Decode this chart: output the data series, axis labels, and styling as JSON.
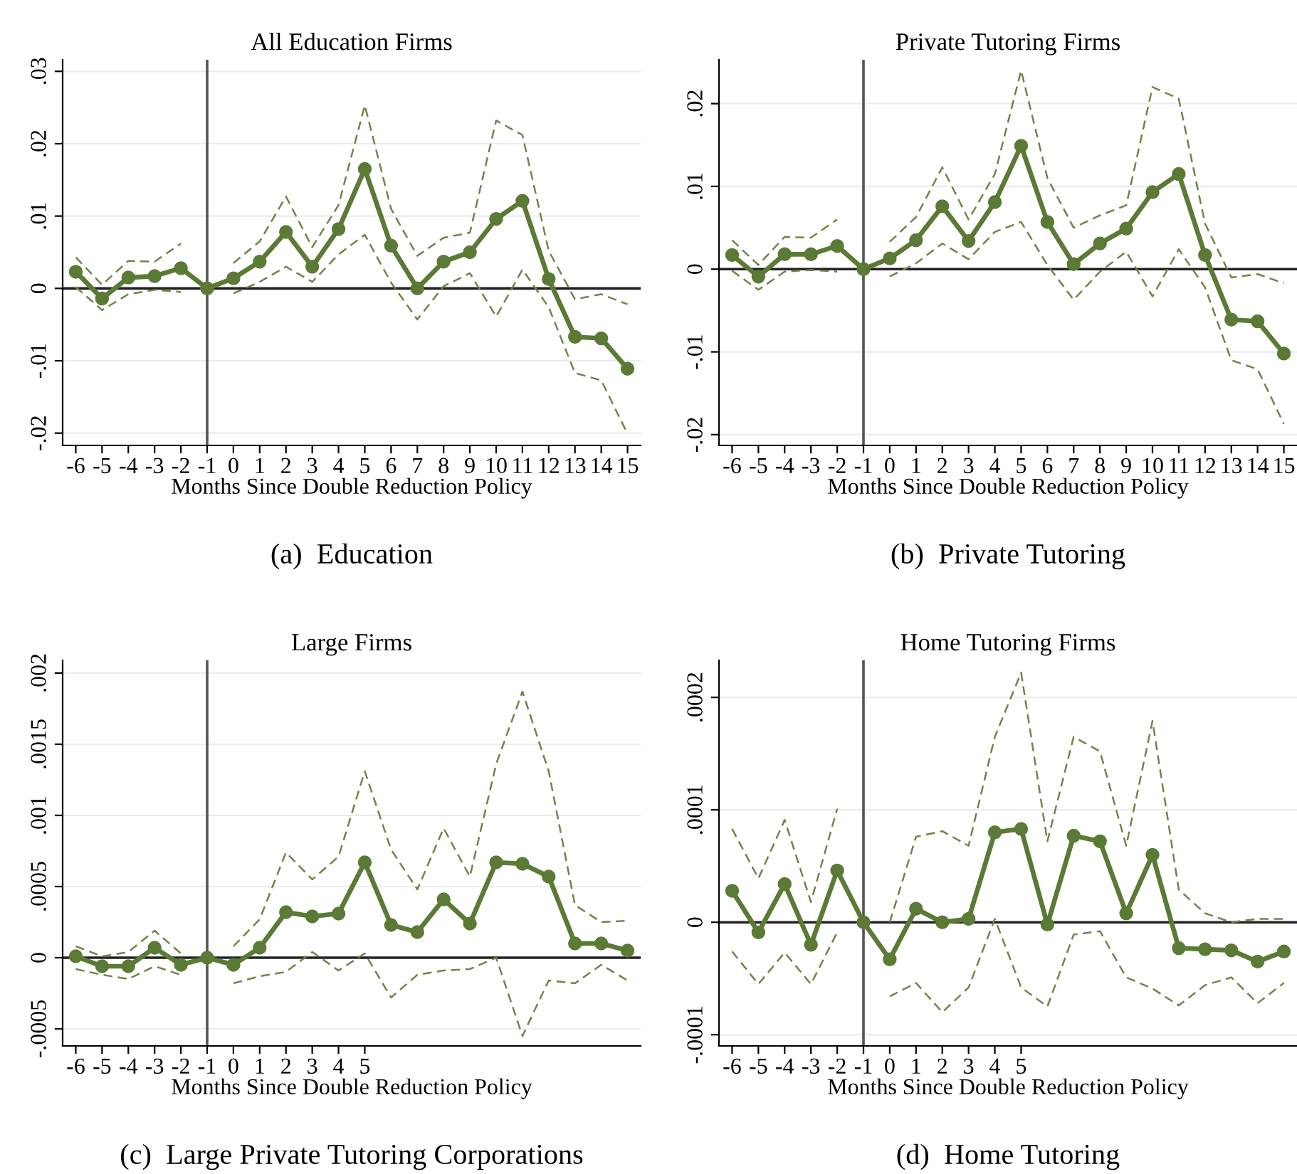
{
  "chart_data": [
    {
      "type": "line",
      "title": "All Education Firms",
      "xlabel": "Months Since Double Reduction Policy",
      "annotations": [
        "(a)  Education"
      ],
      "x": [
        -6,
        -5,
        -4,
        -3,
        -2,
        -1,
        0,
        1,
        2,
        3,
        4,
        5,
        6,
        7,
        8,
        9,
        10,
        11,
        12,
        13,
        14,
        15
      ],
      "xlim": [
        -6.5,
        15.5
      ],
      "xticks": [
        -6,
        -5,
        -4,
        -3,
        -2,
        -1,
        0,
        1,
        2,
        3,
        4,
        5,
        6,
        7,
        8,
        9,
        10,
        11,
        12,
        13,
        14,
        15
      ],
      "ylim": [
        -0.0217,
        0.0316
      ],
      "yticks": [
        {
          "value": -0.02,
          "label": "-.02"
        },
        {
          "value": -0.01,
          "label": "-.01"
        },
        0,
        {
          "value": 0.01,
          "label": ".01"
        },
        {
          "value": 0.02,
          "label": ".02"
        },
        {
          "value": 0.03,
          "label": ".03"
        }
      ],
      "grid": "y",
      "ref_lines": [
        {
          "axis": "x",
          "value": -1,
          "color": "#555555"
        },
        {
          "axis": "y",
          "value": 0,
          "color": "#222222"
        }
      ],
      "series": [
        {
          "color": "#5b7a35",
          "marker": "circle",
          "line_style": "solid",
          "values": [
            0.0023,
            -0.0014,
            0.0015,
            0.0017,
            0.0028,
            0,
            0.0014,
            0.0037,
            0.0078,
            0.003,
            0.0082,
            0.0165,
            0.0059,
            0,
            0.0037,
            0.005,
            0.0096,
            0.0121,
            0.0013,
            -0.0067,
            -0.0069,
            -0.0111
          ]
        },
        {
          "color": "#6f8548",
          "marker": "none",
          "line_style": "dashed",
          "values": [
            0.0043,
            0.0005,
            0.0038,
            0.0037,
            0.0062,
            null,
            0.0035,
            0.0065,
            0.0127,
            0.0057,
            0.0115,
            0.0253,
            0.011,
            0.0045,
            0.007,
            0.0077,
            0.0232,
            0.0212,
            0.0052,
            -0.0015,
            -0.0008,
            -0.0022
          ]
        },
        {
          "color": "#6f8548",
          "marker": "none",
          "line_style": "dashed",
          "values": [
            0.0002,
            -0.003,
            -0.0008,
            -0.0002,
            -0.0005,
            null,
            -0.0007,
            0.0009,
            0.003,
            0.0009,
            0.0047,
            0.0074,
            0.0008,
            -0.0043,
            0.0003,
            0.0021,
            -0.0039,
            0.0026,
            -0.0026,
            -0.0117,
            -0.0127,
            -0.0201
          ]
        }
      ]
    },
    {
      "type": "line",
      "title": "Private Tutoring Firms",
      "xlabel": "Months Since Double Reduction Policy",
      "annotations": [
        "(b)  Private Tutoring"
      ],
      "x": [
        -6,
        -5,
        -4,
        -3,
        -2,
        -1,
        0,
        1,
        2,
        3,
        4,
        5,
        6,
        7,
        8,
        9,
        10,
        11,
        12,
        13,
        14,
        15
      ],
      "xlim": [
        -6.5,
        15.5
      ],
      "xticks": [
        -6,
        -5,
        -4,
        -3,
        -2,
        -1,
        0,
        1,
        2,
        3,
        4,
        5,
        6,
        7,
        8,
        9,
        10,
        11,
        12,
        13,
        14,
        15
      ],
      "ylim": [
        -0.0213,
        0.0253
      ],
      "yticks": [
        {
          "value": -0.02,
          "label": "-.02"
        },
        {
          "value": -0.01,
          "label": "-.01"
        },
        0,
        {
          "value": 0.01,
          "label": ".01"
        },
        {
          "value": 0.02,
          "label": ".02"
        }
      ],
      "grid": "y",
      "ref_lines": [
        {
          "axis": "x",
          "value": -1,
          "color": "#555555"
        },
        {
          "axis": "y",
          "value": 0,
          "color": "#222222"
        }
      ],
      "series": [
        {
          "color": "#5b7a35",
          "marker": "circle",
          "line_style": "solid",
          "values": [
            0.0017,
            -0.0009,
            0.0018,
            0.0018,
            0.0028,
            0,
            0.0013,
            0.0035,
            0.0076,
            0.0034,
            0.0081,
            0.0149,
            0.0057,
            0.0006,
            0.0031,
            0.0049,
            0.0093,
            0.0115,
            0.0017,
            -0.0061,
            -0.0063,
            -0.0102
          ]
        },
        {
          "color": "#6f8548",
          "marker": "none",
          "line_style": "dashed",
          "values": [
            0.0035,
            0.0005,
            0.0039,
            0.0038,
            0.006,
            null,
            0.0033,
            0.0063,
            0.0123,
            0.006,
            0.0115,
            0.024,
            0.011,
            0.005,
            0.0065,
            0.0077,
            0.022,
            0.0206,
            0.0055,
            -0.001,
            -0.0006,
            -0.0017
          ]
        },
        {
          "color": "#6f8548",
          "marker": "none",
          "line_style": "dashed",
          "values": [
            -0.0002,
            -0.0025,
            -0.0003,
            -0.0001,
            -0.0003,
            null,
            -0.0009,
            0.0007,
            0.0031,
            0.0012,
            0.0045,
            0.0057,
            0.0005,
            -0.0037,
            -0.0003,
            0.0021,
            -0.0033,
            0.0024,
            -0.0022,
            -0.011,
            -0.0121,
            -0.0187
          ]
        }
      ]
    },
    {
      "type": "line",
      "title": "Large Firms",
      "xlabel": "Months Since Double Reduction Policy",
      "annotations": [
        "(c)  Large Private Tutoring Corporations"
      ],
      "x": [
        -6,
        -5,
        -4,
        -3,
        -2,
        -1,
        0,
        1,
        2,
        3,
        4,
        5,
        6,
        7,
        8,
        9,
        10,
        11,
        12,
        13,
        14,
        15
      ],
      "xlim": [
        -6.5,
        15.5
      ],
      "xticks": [
        -6,
        -5,
        -4,
        -3,
        -2,
        -1,
        0,
        1,
        2,
        3,
        4,
        5
      ],
      "ylim": [
        -0.00062,
        0.00209
      ],
      "yticks": [
        {
          "value": -0.0005,
          "label": "-.0005"
        },
        0,
        {
          "value": 0.0005,
          "label": ".0005"
        },
        {
          "value": 0.001,
          "label": ".001"
        },
        {
          "value": 0.0015,
          "label": ".0015"
        },
        {
          "value": 0.002,
          "label": ".002"
        }
      ],
      "grid": "y",
      "ref_lines": [
        {
          "axis": "x",
          "value": -1,
          "color": "#555555"
        },
        {
          "axis": "y",
          "value": 0,
          "color": "#222222"
        }
      ],
      "series": [
        {
          "color": "#5b7a35",
          "marker": "circle",
          "line_style": "solid",
          "values": [
            1e-05,
            -6e-05,
            -6e-05,
            7e-05,
            -5e-05,
            0,
            -5e-05,
            7e-05,
            0.00032,
            0.00029,
            0.00031,
            0.00067,
            0.00023,
            0.00018,
            0.00041,
            0.00024,
            0.00067,
            0.00066,
            0.00057,
            0.0001,
            0.0001,
            5e-05
          ]
        },
        {
          "color": "#6f8548",
          "marker": "none",
          "line_style": "dashed",
          "values": [
            8e-05,
            1e-05,
            4e-05,
            0.00019,
            3e-05,
            null,
            8e-05,
            0.00027,
            0.00074,
            0.00055,
            0.00071,
            0.00131,
            0.00076,
            0.00048,
            0.00091,
            0.00057,
            0.00136,
            0.00187,
            0.00131,
            0.00037,
            0.00025,
            0.00026
          ]
        },
        {
          "color": "#6f8548",
          "marker": "none",
          "line_style": "dashed",
          "values": [
            -8e-05,
            -0.00012,
            -0.00015,
            -6e-05,
            -0.00012,
            null,
            -0.00018,
            -0.00013,
            -0.0001,
            4e-05,
            -9e-05,
            3e-05,
            -0.00028,
            -0.00012,
            -9e-05,
            -8e-05,
            0,
            -0.00055,
            -0.00016,
            -0.00018,
            -5e-05,
            -0.00016
          ]
        }
      ]
    },
    {
      "type": "line",
      "title": "Home Tutoring Firms",
      "xlabel": "Months Since Double Reduction Policy",
      "annotations": [
        "(d)  Home Tutoring"
      ],
      "x": [
        -6,
        -5,
        -4,
        -3,
        -2,
        -1,
        0,
        1,
        2,
        3,
        4,
        5,
        6,
        7,
        8,
        9,
        10,
        11,
        12,
        13,
        14,
        15
      ],
      "xlim": [
        -6.5,
        15.5
      ],
      "xticks": [
        -6,
        -5,
        -4,
        -3,
        -2,
        -1,
        0,
        1,
        2,
        3,
        4,
        5
      ],
      "ylim": [
        -0.00011,
        0.000233
      ],
      "yticks": [
        {
          "value": -0.0001,
          "label": "-.0001"
        },
        0,
        {
          "value": 0.0001,
          "label": ".0001"
        },
        {
          "value": 0.0002,
          "label": ".0002"
        }
      ],
      "grid": "y",
      "ref_lines": [
        {
          "axis": "x",
          "value": -1,
          "color": "#555555"
        },
        {
          "axis": "y",
          "value": 0,
          "color": "#222222"
        }
      ],
      "series": [
        {
          "color": "#5b7a35",
          "marker": "circle",
          "line_style": "solid",
          "values": [
            2.8e-05,
            -9e-06,
            3.4e-05,
            -2e-05,
            4.6e-05,
            0,
            -3.3e-05,
            1.2e-05,
            0,
            3e-06,
            8e-05,
            8.3e-05,
            -2e-06,
            7.7e-05,
            7.2e-05,
            8e-06,
            6e-05,
            -2.3e-05,
            -2.4e-05,
            -2.5e-05,
            -3.5e-05,
            -2.6e-05
          ]
        },
        {
          "color": "#6f8548",
          "marker": "none",
          "line_style": "dashed",
          "values": [
            8.3e-05,
            3.9e-05,
            9.1e-05,
            1.8e-05,
            0.000101,
            null,
            0,
            7.6e-05,
            8.1e-05,
            6.8e-05,
            0.000165,
            0.000222,
            7.2e-05,
            0.000165,
            0.000152,
            6.8e-05,
            0.000179,
            2.9e-05,
            8e-06,
            0,
            3e-06,
            3e-06
          ]
        },
        {
          "color": "#6f8548",
          "marker": "none",
          "line_style": "dashed",
          "values": [
            -2.6e-05,
            -5.5e-05,
            -2.7e-05,
            -5.5e-05,
            -9e-06,
            null,
            -6.6e-05,
            -5.4e-05,
            -8e-05,
            -5.8e-05,
            3e-06,
            -5.8e-05,
            -7.5e-05,
            -1.1e-05,
            -8e-06,
            -4.9e-05,
            -5.9e-05,
            -7.4e-05,
            -5.6e-05,
            -4.9e-05,
            -7.2e-05,
            -5.4e-05
          ]
        }
      ]
    }
  ]
}
